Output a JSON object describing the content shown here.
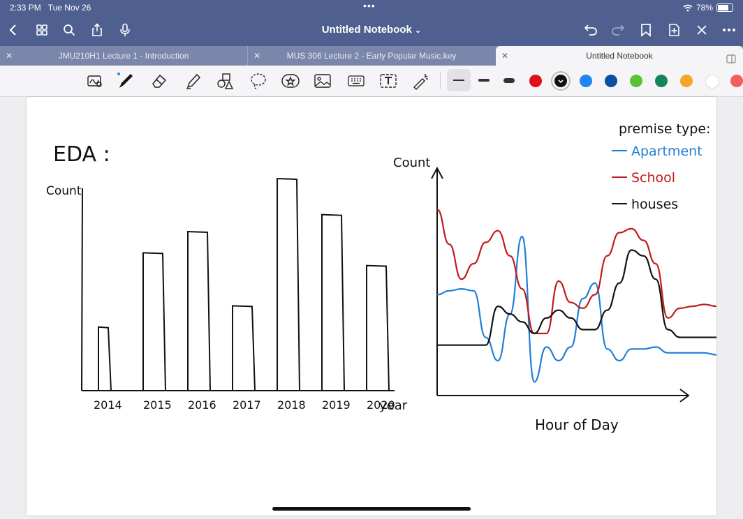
{
  "status": {
    "time": "2:33 PM",
    "date": "Tue Nov 26",
    "dots": "•••",
    "battery": "78%",
    "battery_level": 0.78
  },
  "nav": {
    "title": "Untitled Notebook"
  },
  "tabs": [
    {
      "label": "JMU210H1 Lecture 1 - Introduction"
    },
    {
      "label": "MUS 306 Lecture 2 - Early Popular Music.key"
    },
    {
      "label": "Untitled Notebook"
    }
  ],
  "colors": {
    "swatches": [
      "#e0101b",
      "#111111",
      "#1d86f0",
      "#0b4ea2",
      "#5bc236",
      "#17855a",
      "#f5a623",
      "#ffffff",
      "#f06060"
    ],
    "selected": "#111111"
  },
  "notes": {
    "heading": "EDA :",
    "bar_y_label": "Count",
    "bar_x_label": "year",
    "line_y_label": "Count",
    "line_x_label": "Hour of Day",
    "legend_title": "premise type:"
  },
  "chart_data": [
    {
      "type": "bar",
      "categories": [
        "2014",
        "2015",
        "2016",
        "2017",
        "2018",
        "2019",
        "2020"
      ],
      "values": [
        30,
        65,
        75,
        40,
        100,
        83,
        59
      ],
      "ylabel": "Count",
      "xlabel": "year",
      "ylim": [
        0,
        100
      ],
      "grid": false
    },
    {
      "type": "line",
      "xlabel": "Hour of Day",
      "ylabel": "Count",
      "ylim": [
        0,
        100
      ],
      "xlim": [
        0,
        23
      ],
      "x": [
        0,
        1,
        2,
        3,
        4,
        5,
        6,
        7,
        8,
        9,
        10,
        11,
        12,
        13,
        14,
        15,
        16,
        17,
        18,
        19,
        20,
        21,
        22,
        23
      ],
      "series": [
        {
          "name": "Apartment",
          "color": "#1f7fd6",
          "values": [
            52,
            54,
            55,
            54,
            30,
            18,
            42,
            82,
            7,
            25,
            18,
            25,
            50,
            58,
            24,
            18,
            24,
            24,
            25,
            22,
            22,
            22,
            22,
            21
          ]
        },
        {
          "name": "School",
          "color": "#c21a1a",
          "values": [
            96,
            78,
            60,
            68,
            79,
            85,
            72,
            55,
            32,
            32,
            59,
            48,
            45,
            52,
            72,
            84,
            86,
            80,
            68,
            40,
            45,
            46,
            47,
            46
          ]
        },
        {
          "name": "houses",
          "color": "#111111",
          "values": [
            26,
            26,
            26,
            26,
            26,
            46,
            42,
            38,
            32,
            40,
            44,
            40,
            34,
            34,
            44,
            58,
            75,
            72,
            60,
            34,
            30,
            30,
            30,
            30
          ]
        }
      ]
    }
  ]
}
